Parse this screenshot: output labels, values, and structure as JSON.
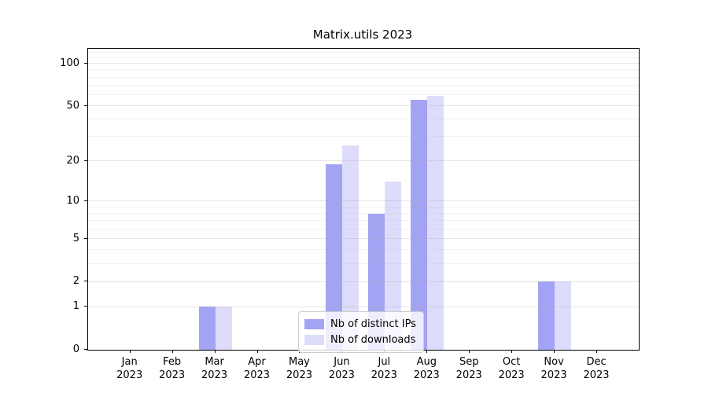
{
  "chart_data": {
    "type": "bar",
    "title": "Matrix.utils 2023",
    "categories": [
      "Jan",
      "Feb",
      "Mar",
      "Apr",
      "May",
      "Jun",
      "Jul",
      "Aug",
      "Sep",
      "Oct",
      "Nov",
      "Dec"
    ],
    "year": "2023",
    "series": [
      {
        "name": "Nb of distinct IPs",
        "values": [
          0,
          0,
          1,
          0,
          0,
          19,
          8,
          55,
          0,
          0,
          2,
          0
        ],
        "color": "rgba(102,102,235,0.60)",
        "color_hex": "#a8a8f0"
      },
      {
        "name": "Nb of downloads",
        "values": [
          0,
          0,
          1,
          0,
          0,
          26,
          14,
          59,
          0,
          0,
          2,
          0
        ],
        "color": "rgba(102,102,235,0.22)",
        "color_hex": "#dcdcf8"
      }
    ],
    "yscale": "log1p",
    "ylim": [
      0,
      127
    ],
    "yticks": [
      0,
      1,
      2,
      5,
      10,
      20,
      50,
      100
    ],
    "yticks_minor": [
      3,
      4,
      6,
      7,
      8,
      9,
      30,
      40,
      60,
      70,
      80,
      90,
      110,
      120
    ],
    "xlabel": "",
    "ylabel": "",
    "grid": "horizontal",
    "legend_position": "bottom-center-inside"
  }
}
